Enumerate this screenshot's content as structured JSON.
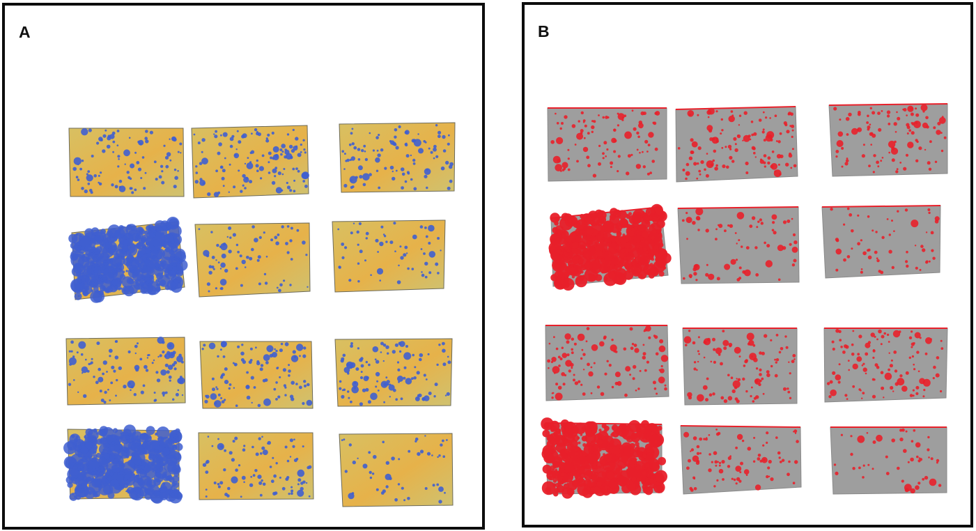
{
  "figure": {
    "panels": [
      {
        "label": "A",
        "card_style": "water-sensitive paper (yellow) with blue droplet stains"
      },
      {
        "label": "B",
        "card_style": "grayscale card with droplet stains highlighted in red"
      }
    ],
    "grid": {
      "rows": 4,
      "columns": 3
    },
    "stain_density_per_card": [
      [
        0.35,
        0.55,
        0.4
      ],
      [
        0.95,
        0.2,
        0.12
      ],
      [
        0.45,
        0.4,
        0.45
      ],
      [
        0.98,
        0.3,
        0.06
      ]
    ],
    "colors": {
      "border": "#0c0c0c",
      "paper_yellow": "#e6b24a",
      "stain_blue": "#3f5fd0",
      "card_gray": "#9e9e9e",
      "stain_red": "#e8202a"
    }
  }
}
